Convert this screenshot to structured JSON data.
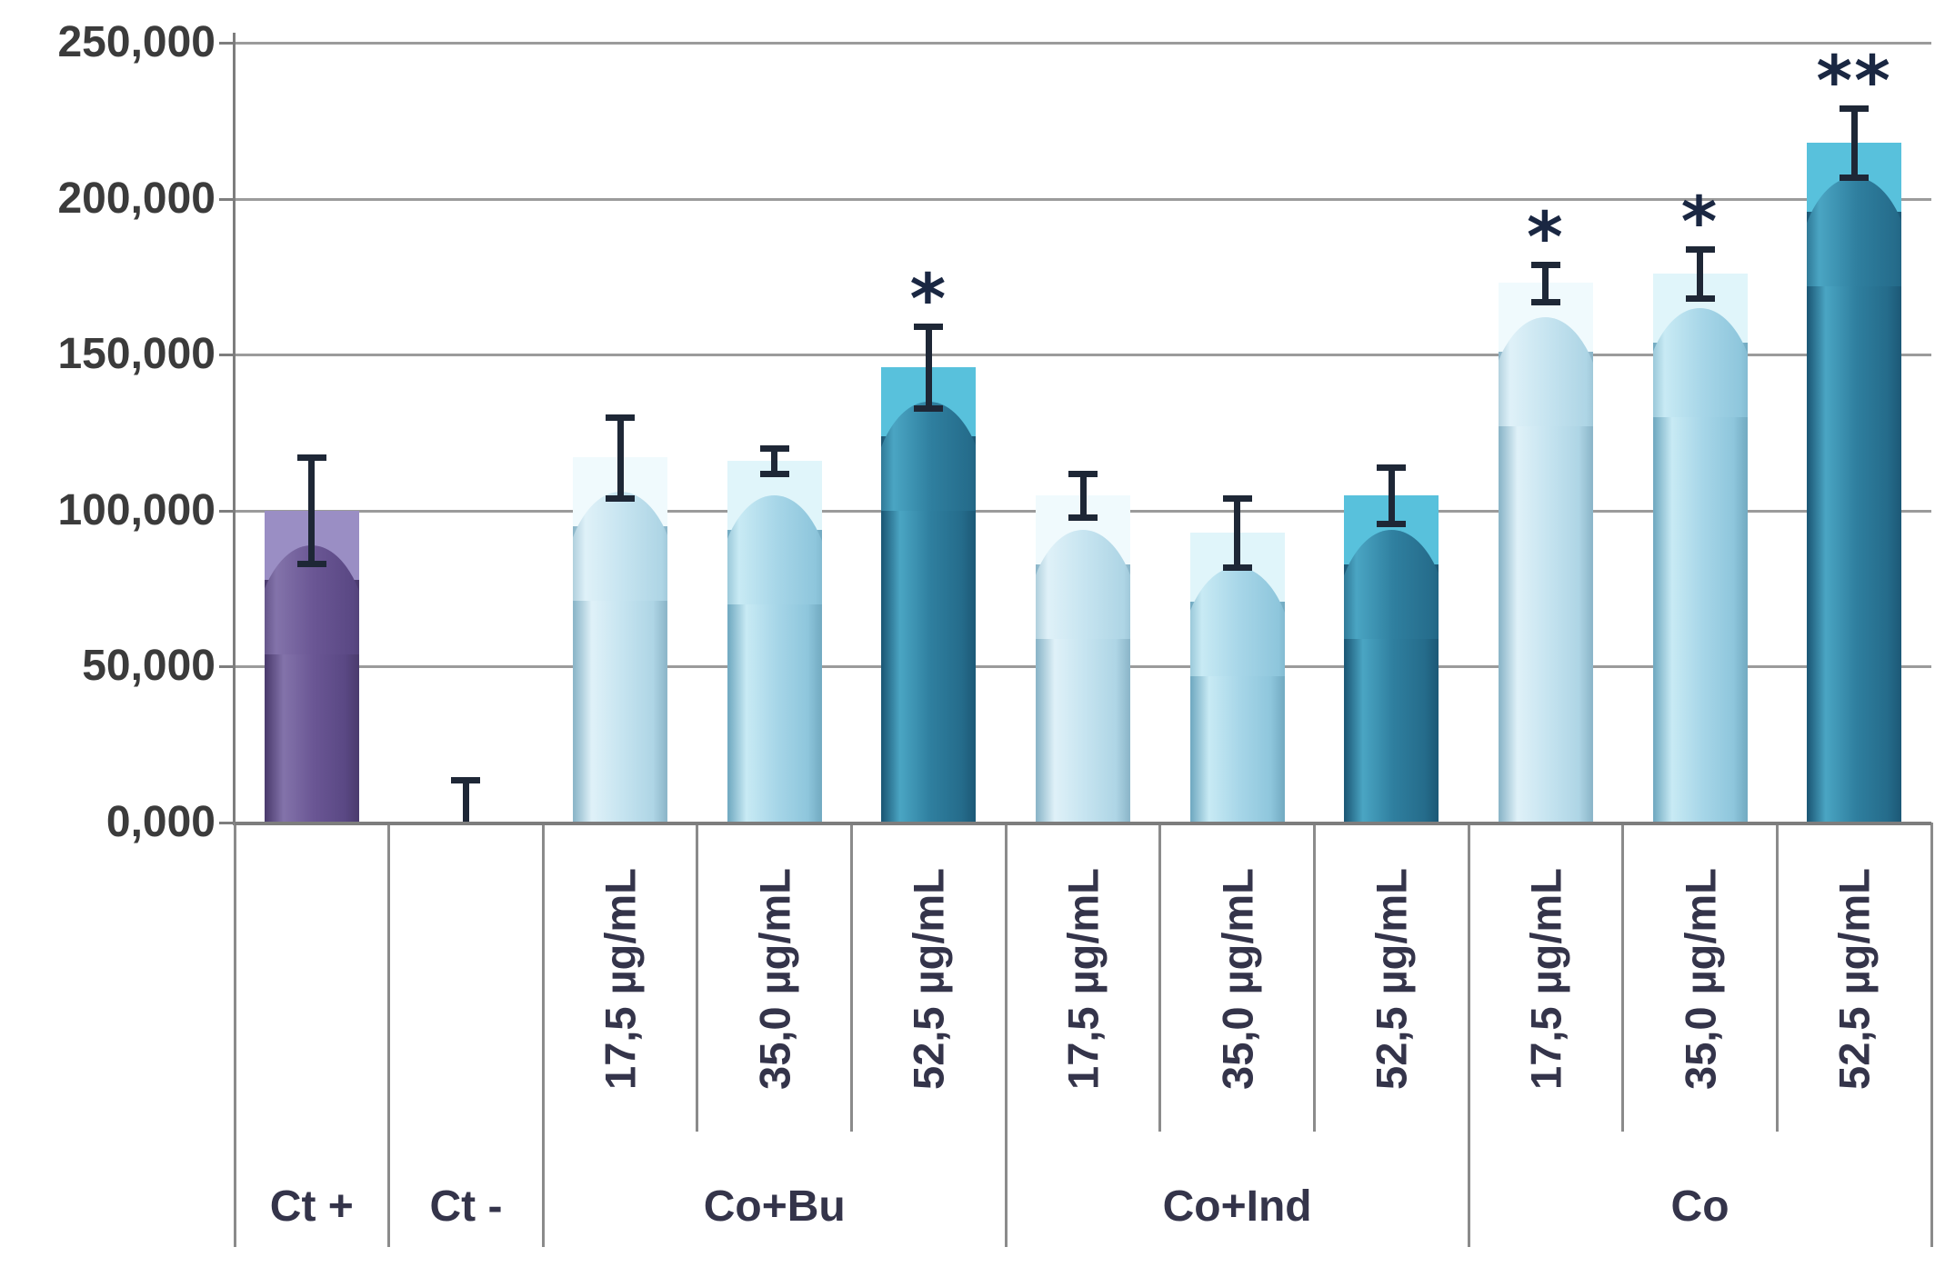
{
  "chart_data": {
    "type": "bar",
    "title": "",
    "xlabel": "",
    "ylabel": "",
    "ylim": [
      0,
      250
    ],
    "grid": true,
    "legend": "none",
    "y_tick_labels": [
      "250,000",
      "200,000",
      "150,000",
      "100,000",
      "50,000",
      "0,000"
    ],
    "y_tick_values": [
      250,
      200,
      150,
      100,
      50,
      0
    ],
    "groups": [
      {
        "label": "Ct +",
        "bars": [
          {
            "conc_label": "",
            "value": 100,
            "error": 17,
            "color": "purple",
            "sig": "",
            "show_bar": true
          }
        ]
      },
      {
        "label": "Ct -",
        "bars": [
          {
            "conc_label": "",
            "value": 0.8,
            "error": 13,
            "color": "none",
            "sig": "",
            "show_bar": false
          }
        ]
      },
      {
        "label": "Co+Bu",
        "bars": [
          {
            "conc_label": "17,5 µg/mL",
            "value": 117,
            "error": 13,
            "color": "light",
            "sig": "",
            "show_bar": true
          },
          {
            "conc_label": "35,0 µg/mL",
            "value": 116,
            "error": 4,
            "color": "mid",
            "sig": "",
            "show_bar": true
          },
          {
            "conc_label": "52,5 µg/mL",
            "value": 146,
            "error": 13,
            "color": "dark",
            "sig": "*",
            "show_bar": true
          }
        ]
      },
      {
        "label": "Co+Ind",
        "bars": [
          {
            "conc_label": "17,5 µg/mL",
            "value": 105,
            "error": 7,
            "color": "light",
            "sig": "",
            "show_bar": true
          },
          {
            "conc_label": "35,0 µg/mL",
            "value": 93,
            "error": 11,
            "color": "mid",
            "sig": "",
            "show_bar": true
          },
          {
            "conc_label": "52,5 µg/mL",
            "value": 105,
            "error": 9,
            "color": "dark",
            "sig": "",
            "show_bar": true
          }
        ]
      },
      {
        "label": "Co",
        "bars": [
          {
            "conc_label": "17,5 µg/mL",
            "value": 173,
            "error": 6,
            "color": "light",
            "sig": "*",
            "show_bar": true
          },
          {
            "conc_label": "35,0 µg/mL",
            "value": 176,
            "error": 8,
            "color": "mid",
            "sig": "*",
            "show_bar": true
          },
          {
            "conc_label": "52,5 µg/mL",
            "value": 218,
            "error": 11,
            "color": "dark",
            "sig": "**",
            "show_bar": true
          }
        ]
      }
    ]
  },
  "palette": {
    "purple": {
      "edge": "#4c3c6f",
      "lite": "#8373aa",
      "body": "#6a5694",
      "shade": "#5a4884",
      "cap": "#9a8ec4"
    },
    "light": {
      "edge": "#8db7ca",
      "lite": "#dff1f8",
      "body": "#c6e4f0",
      "shade": "#aed5e5",
      "cap": "#f0fafd"
    },
    "mid": {
      "edge": "#74acc3",
      "lite": "#c8eaf4",
      "body": "#a7d6e8",
      "shade": "#8ec6dc",
      "cap": "#e0f5fa"
    },
    "dark": {
      "edge": "#1d5a78",
      "lite": "#4aa5c3",
      "body": "#2f7f9f",
      "shade": "#256c8b",
      "cap": "#58c1dc"
    }
  },
  "style_colors": {
    "gridline": "#9b9b9b",
    "axis": "#7d7d7d",
    "separator": "#8b8b8b",
    "error_bar": "#1e2736",
    "y_label_text": "#3b3b3b",
    "category_text": "#34344a",
    "significance_text": "#1a2742",
    "background": "#ffffff"
  }
}
